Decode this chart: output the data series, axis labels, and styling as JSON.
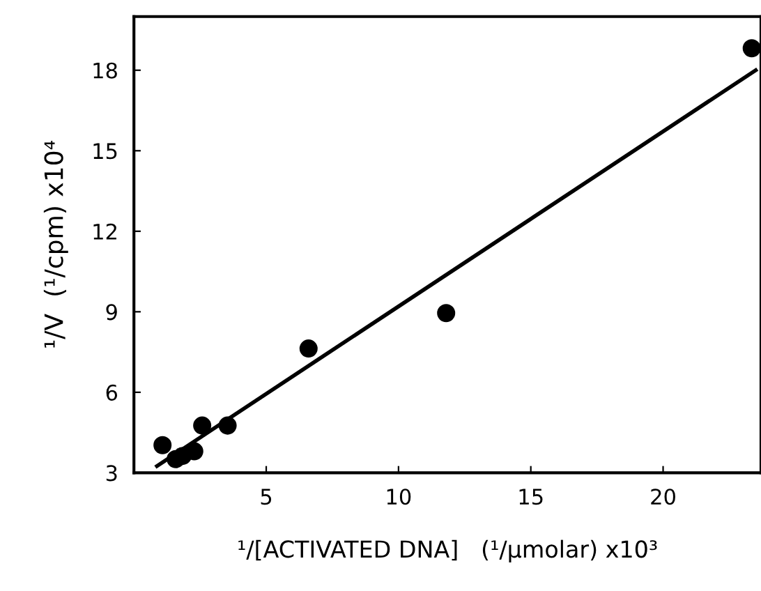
{
  "chart_data": {
    "type": "scatter",
    "xlabel": "¹/[ACTIVATED DNA]   (¹/μmolar) x10³",
    "ylabel": "¹/V  (¹/cpm) x10⁴",
    "xlim": [
      0,
      23.7
    ],
    "ylim": [
      3,
      20
    ],
    "xticks": [
      5,
      10,
      15,
      20
    ],
    "yticks": [
      3,
      6,
      9,
      12,
      15,
      18
    ],
    "grid": false,
    "legend": false,
    "marker": "circle",
    "series": [
      {
        "color": "#000000",
        "x": [
          1.08,
          1.58,
          1.84,
          2.28,
          2.58,
          3.54,
          6.6,
          11.8,
          23.35
        ],
        "values": [
          4.03,
          3.51,
          3.63,
          3.8,
          4.76,
          4.76,
          7.63,
          8.95,
          18.82
        ]
      },
      {
        "type": "line",
        "color": "#000000",
        "x": [
          0.87,
          23.5
        ],
        "values": [
          3.25,
          18.0
        ],
        "marker": "none",
        "line_style": "solid"
      }
    ]
  }
}
